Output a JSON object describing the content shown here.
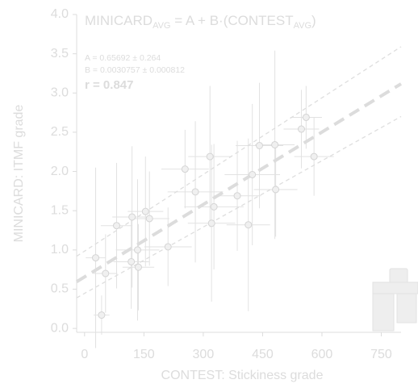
{
  "chart_data": {
    "type": "scatter",
    "title": [
      "MINICARD",
      "AVG",
      " = A + B·(CONTEST",
      "AVG",
      ")"
    ],
    "annotations": [
      "A = 0.65692 ± 0.264",
      "B = 0.0030757 ± 0.000812",
      "r = 0.847"
    ],
    "x_label": "CONTEST: Stickiness grade",
    "y_label": "MINICARD: ITMF grade",
    "xlim": [
      -20,
      800
    ],
    "ylim": [
      -0.05,
      4
    ],
    "xticks": [
      0,
      150,
      300,
      450,
      600,
      750
    ],
    "yticks": [
      {
        "value": 0,
        "label": "0.0"
      },
      0.5,
      {
        "value": 1,
        "label": "1.0"
      },
      1.5,
      {
        "value": 2,
        "label": "2.0"
      },
      2.5,
      {
        "value": 3,
        "label": "3.0"
      },
      3.5,
      {
        "value": 4,
        "label": "4.0"
      }
    ],
    "series": [
      {
        "color": "#e2e2e2",
        "x": [
          43,
          28,
          53,
          81,
          120,
          118,
          134,
          136,
          154,
          164,
          211,
          254,
          280,
          317,
          321,
          327,
          386,
          414,
          424,
          442,
          481,
          483,
          548,
          560,
          580
        ],
        "values": [
          0.17,
          0.9,
          0.7,
          1.31,
          1.42,
          0.85,
          1.0,
          0.78,
          1.49,
          1.4,
          1.04,
          2.03,
          1.74,
          2.19,
          1.34,
          1.55,
          1.69,
          1.32,
          1.96,
          2.33,
          2.34,
          1.77,
          2.54,
          2.69,
          2.19
        ],
        "xerr": [
          20,
          25,
          30,
          40,
          50,
          45,
          55,
          40,
          45,
          50,
          60,
          60,
          70,
          55,
          60,
          75,
          60,
          55,
          70,
          60,
          50,
          55,
          45,
          40,
          50
        ],
        "yerr": [
          0.25,
          1.15,
          0.5,
          0.8,
          0.9,
          0.6,
          0.9,
          0.55,
          0.7,
          0.6,
          0.5,
          0.5,
          0.9,
          0.9,
          1.0,
          0.8,
          0.7,
          1.1,
          0.9,
          0.8,
          1.2,
          0.6,
          0.5,
          0.4,
          0.5
        ]
      }
    ],
    "lines": [
      {
        "x": [
          -20,
          800
        ],
        "values": [
          0.595,
          3.117
        ],
        "color": "#dcdcdc",
        "style": "bold"
      },
      {
        "x": [
          -20,
          800
        ],
        "values": [
          0.92,
          3.59
        ],
        "color": "#dedede",
        "style": "thin"
      },
      {
        "x": [
          -20,
          800
        ],
        "values": [
          0.39,
          2.7
        ],
        "color": "#dedede",
        "style": "thin"
      }
    ]
  }
}
